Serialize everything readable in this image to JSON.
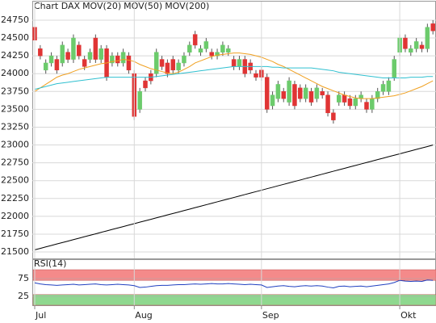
{
  "chart_data": [
    {
      "type": "candlestick",
      "title": "Chart DAX",
      "title_color": "#e05a3a",
      "open": [
        24650,
        24350,
        24050,
        24150,
        24200,
        24150,
        24300,
        24200,
        24400,
        24200,
        24200,
        24500,
        24200,
        24350,
        24150,
        24250,
        24150,
        24250,
        24000,
        23500,
        23900,
        24000,
        24000,
        24200,
        24150,
        24200,
        24050,
        24150,
        24300,
        24550,
        24300,
        24350,
        24300,
        24250,
        24300,
        24300,
        24200,
        24100,
        24200,
        24150,
        24000,
        24050,
        23950,
        23550,
        23650,
        23750,
        23600,
        23850,
        23800,
        23650,
        23750,
        23650,
        23750,
        23700,
        23450,
        23600,
        23700,
        23650,
        23550,
        23650,
        23600,
        23500,
        23650,
        23750,
        23750,
        23950,
        24300,
        24500,
        24300,
        24350,
        24400,
        24350,
        24700
      ],
      "high": [
        24700,
        24400,
        24200,
        24300,
        24250,
        24450,
        24350,
        24550,
        24450,
        24250,
        24350,
        24550,
        24400,
        24400,
        24300,
        24300,
        24350,
        24300,
        24050,
        23800,
        23950,
        24050,
        24350,
        24250,
        24200,
        24250,
        24200,
        24300,
        24450,
        24600,
        24400,
        24500,
        24350,
        24350,
        24450,
        24400,
        24250,
        24250,
        24250,
        24200,
        24050,
        24100,
        24000,
        23750,
        23900,
        23800,
        23950,
        23900,
        23850,
        23850,
        23800,
        23850,
        23800,
        23750,
        23500,
        23750,
        23750,
        23700,
        23700,
        23750,
        23650,
        23700,
        23800,
        23900,
        23950,
        24250,
        24550,
        24550,
        24400,
        24500,
        24450,
        24700,
        24750
      ],
      "low": [
        24420,
        24200,
        24000,
        24100,
        24000,
        24100,
        24150,
        24150,
        24200,
        24050,
        24150,
        24150,
        24150,
        23900,
        24100,
        24100,
        24100,
        24000,
        23350,
        23450,
        23750,
        23850,
        23950,
        24050,
        23950,
        24000,
        24000,
        24100,
        24250,
        24350,
        24250,
        24300,
        24200,
        24200,
        24250,
        24250,
        24050,
        24050,
        23950,
        24000,
        23900,
        23900,
        23450,
        23500,
        23600,
        23600,
        23550,
        23500,
        23600,
        23600,
        23550,
        23600,
        23650,
        23400,
        23300,
        23550,
        23550,
        23500,
        23500,
        23600,
        23450,
        23450,
        23600,
        23700,
        23700,
        23900,
        24250,
        24300,
        24250,
        24300,
        24300,
        24300,
        24550
      ],
      "close": [
        24470,
        24250,
        24150,
        24250,
        24050,
        24400,
        24200,
        24500,
        24250,
        24100,
        24300,
        24200,
        24350,
        23950,
        24250,
        24150,
        24300,
        24050,
        23400,
        23750,
        23800,
        23900,
        24300,
        24100,
        24000,
        24050,
        24150,
        24250,
        24400,
        24400,
        24350,
        24450,
        24250,
        24300,
        24400,
        24350,
        24100,
        24200,
        24000,
        24050,
        23950,
        23950,
        23500,
        23700,
        23850,
        23650,
        23900,
        23550,
        23650,
        23800,
        23600,
        23800,
        23700,
        23450,
        23350,
        23700,
        23600,
        23550,
        23650,
        23700,
        23500,
        23650,
        23750,
        23850,
        23900,
        24200,
        24500,
        24350,
        24350,
        24450,
        24350,
        24650,
        24600
      ],
      "up_color": "#6ccb6c",
      "down_color": "#e03434",
      "series": [
        {
          "name": "MOV(20)",
          "color": "#f0a020",
          "values": [
            23750,
            23800,
            23850,
            23900,
            23950,
            23980,
            24000,
            24030,
            24060,
            24080,
            24100,
            24120,
            24140,
            24150,
            24170,
            24180,
            24200,
            24190,
            24170,
            24130,
            24100,
            24070,
            24050,
            24030,
            24010,
            24000,
            24020,
            24060,
            24100,
            24150,
            24180,
            24210,
            24240,
            24260,
            24270,
            24280,
            24290,
            24290,
            24280,
            24270,
            24250,
            24230,
            24200,
            24170,
            24130,
            24100,
            24060,
            24020,
            23980,
            23940,
            23900,
            23860,
            23820,
            23790,
            23760,
            23730,
            23700,
            23680,
            23660,
            23650,
            23650,
            23650,
            23660,
            23670,
            23680,
            23690,
            23710,
            23730,
            23760,
            23790,
            23820,
            23860,
            23900
          ]
        },
        {
          "name": "MOV(50)",
          "color": "#30c0d0",
          "values": [
            23780,
            23800,
            23820,
            23840,
            23860,
            23870,
            23880,
            23890,
            23900,
            23910,
            23920,
            23930,
            23940,
            23950,
            23950,
            23950,
            23950,
            23950,
            23950,
            23950,
            23950,
            23950,
            23960,
            23970,
            23980,
            23990,
            24000,
            24010,
            24020,
            24030,
            24040,
            24050,
            24060,
            24070,
            24080,
            24090,
            24100,
            24100,
            24100,
            24100,
            24100,
            24100,
            24100,
            24090,
            24090,
            24080,
            24080,
            24080,
            24080,
            24080,
            24080,
            24070,
            24060,
            24050,
            24040,
            24020,
            24010,
            24000,
            23990,
            23980,
            23970,
            23960,
            23950,
            23940,
            23940,
            23940,
            23940,
            23940,
            23950,
            23950,
            23950,
            23960,
            23960
          ]
        },
        {
          "name": "MOV(200)",
          "color": "#000000",
          "values": [
            21530,
            21550,
            21571,
            21591,
            21612,
            21632,
            21652,
            21673,
            21693,
            21714,
            21734,
            21754,
            21775,
            21795,
            21816,
            21836,
            21856,
            21877,
            21897,
            21918,
            21938,
            21958,
            21979,
            21999,
            22020,
            22040,
            22060,
            22081,
            22101,
            22122,
            22142,
            22162,
            22183,
            22203,
            22224,
            22244,
            22264,
            22285,
            22305,
            22326,
            22346,
            22366,
            22387,
            22407,
            22428,
            22448,
            22468,
            22489,
            22509,
            22530,
            22550,
            22570,
            22591,
            22611,
            22632,
            22652,
            22672,
            22693,
            22713,
            22734,
            22754,
            22774,
            22795,
            22815,
            22836,
            22856,
            22876,
            22897,
            22917,
            22938,
            22958,
            22978,
            22999
          ]
        }
      ],
      "ylim": [
        21410,
        25010
      ],
      "yticks": [
        21500,
        21750,
        22000,
        22250,
        22500,
        22750,
        23000,
        23250,
        23500,
        23750,
        24000,
        24250,
        24500,
        24750
      ],
      "grid": true
    },
    {
      "type": "line",
      "title": "RSI(14)",
      "categories": [
        "Jul",
        null,
        null,
        null,
        null,
        null,
        null,
        null,
        null,
        null,
        null,
        null,
        null,
        null,
        null,
        null,
        null,
        null,
        "Aug",
        null,
        null,
        null,
        null,
        null,
        null,
        null,
        null,
        null,
        null,
        null,
        null,
        null,
        null,
        null,
        null,
        null,
        null,
        null,
        null,
        null,
        null,
        "Sep",
        null,
        null,
        null,
        null,
        null,
        null,
        null,
        null,
        null,
        null,
        null,
        null,
        null,
        null,
        null,
        null,
        null,
        null,
        null,
        null,
        null,
        null,
        null,
        null,
        "Okt",
        null,
        null,
        null,
        null,
        null,
        null
      ],
      "values": [
        63,
        60,
        58,
        57,
        56,
        57,
        58,
        59,
        57,
        58,
        59,
        60,
        58,
        57,
        58,
        59,
        58,
        57,
        55,
        50,
        51,
        53,
        55,
        56,
        56,
        57,
        58,
        58,
        59,
        60,
        59,
        60,
        61,
        60,
        60,
        61,
        60,
        59,
        58,
        59,
        58,
        57,
        50,
        52,
        54,
        55,
        53,
        52,
        54,
        55,
        54,
        55,
        54,
        51,
        49,
        53,
        54,
        52,
        53,
        54,
        52,
        54,
        56,
        58,
        60,
        64,
        70,
        68,
        67,
        68,
        67,
        71,
        70
      ],
      "color": "#2040c0",
      "zones": [
        {
          "from": 70,
          "to": 100,
          "color": "#f48a8a"
        },
        {
          "from": 0,
          "to": 30,
          "color": "#8fd88f"
        }
      ],
      "ylim": [
        0,
        100
      ],
      "yticks": [
        25,
        75
      ],
      "grid": true
    }
  ]
}
